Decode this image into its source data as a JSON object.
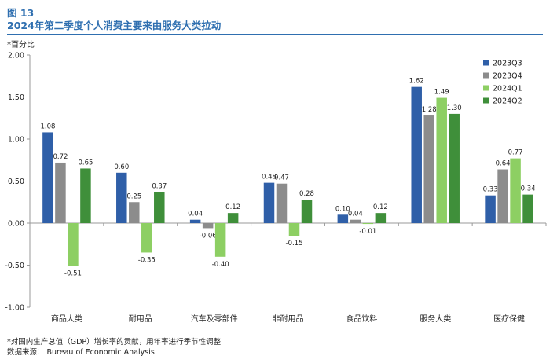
{
  "figure": {
    "label": "图 13",
    "title": "2024年第二季度个人消费主要来由服务大类拉动",
    "unit_note": "*百分比",
    "footnote": "*对国内生产总值（GDP）增长率的贡献，用年率进行季节性调整",
    "source": "数据来源：  Bureau of Economic Analysis"
  },
  "chart_data": {
    "type": "bar",
    "title": "2024年第二季度个人消费主要来由服务大类拉动",
    "xlabel": "",
    "ylabel": "*百分比",
    "ylim": [
      -1.0,
      2.0
    ],
    "yticks": [
      "2.00",
      "1.50",
      "1.00",
      "0.50",
      "0.00",
      "-0.50",
      "-1.00"
    ],
    "legend_position": "top-right",
    "grid": false,
    "categories": [
      "商品大类",
      "耐用品",
      "汽车及零部件",
      "非耐用品",
      "食品饮料",
      "服务大类",
      "医疗保健"
    ],
    "series": [
      {
        "name": "2023Q3",
        "color": "#2f5fa8",
        "values": [
          1.08,
          0.6,
          0.04,
          0.48,
          0.1,
          1.62,
          0.33
        ],
        "labels": [
          "1.08",
          "0.60",
          "0.04",
          "0.48",
          "0.10",
          "1.62",
          "0.33"
        ]
      },
      {
        "name": "2023Q4",
        "color": "#8c8c8c",
        "values": [
          0.72,
          0.25,
          -0.06,
          0.47,
          0.04,
          1.28,
          0.64
        ],
        "labels": [
          "0.72",
          "0.25",
          "-0.06",
          "0.47",
          "0.04",
          "1.28",
          "0.64"
        ]
      },
      {
        "name": "2024Q1",
        "color": "#8dcf63",
        "values": [
          -0.51,
          -0.35,
          -0.4,
          -0.15,
          -0.01,
          1.49,
          0.77
        ],
        "labels": [
          "-0.51",
          "-0.35",
          "-0.40",
          "-0.15",
          "-0.01",
          "1.49",
          "0.77"
        ]
      },
      {
        "name": "2024Q2",
        "color": "#3f8f3a",
        "values": [
          0.65,
          0.37,
          0.12,
          0.28,
          0.12,
          1.3,
          0.34
        ],
        "labels": [
          "0.65",
          "0.37",
          "0.12",
          "0.28",
          "0.12",
          "1.30",
          "0.34"
        ]
      }
    ]
  }
}
